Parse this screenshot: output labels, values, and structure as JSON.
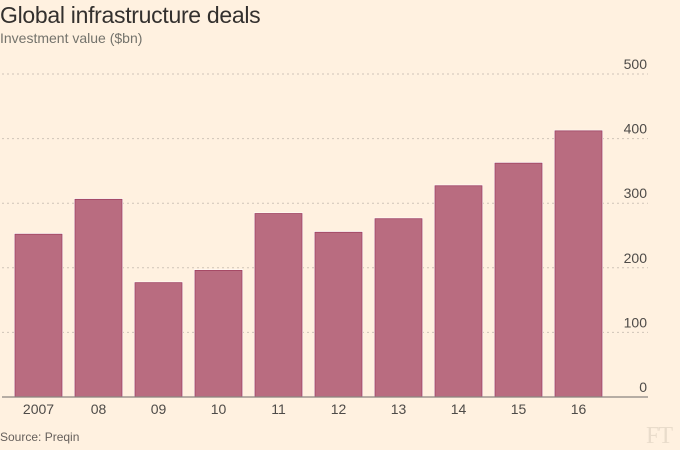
{
  "chart_data": {
    "type": "bar",
    "title": "Global infrastructure deals",
    "subtitle": "Investment value ($bn)",
    "xlabel": "",
    "ylabel": "Investment value ($bn)",
    "categories": [
      "2007",
      "08",
      "09",
      "10",
      "11",
      "12",
      "13",
      "14",
      "15",
      "16"
    ],
    "values": [
      252,
      306,
      177,
      196,
      284,
      255,
      276,
      327,
      362,
      412
    ],
    "ylim": [
      0,
      500
    ],
    "yticks": [
      0,
      100,
      200,
      300,
      400,
      500
    ],
    "ytick_labels": [
      "0",
      "100",
      "200",
      "300",
      "400",
      "500"
    ],
    "y_axis_side": "right",
    "grid": true,
    "bar_color": "#b96c80",
    "bar_edge_color": "#a0415f",
    "source": "Source: Preqin",
    "logo": "FT"
  },
  "colors": {
    "background": "#fff1e0",
    "bar": "#b96c80"
  }
}
